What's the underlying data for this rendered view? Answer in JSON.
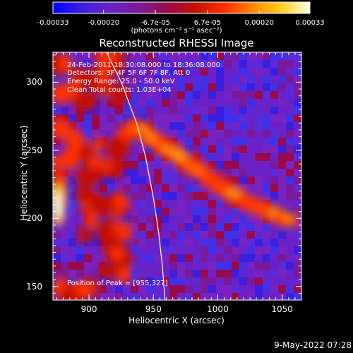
{
  "colorbar": {
    "tick_labels": [
      "-0.00033",
      "-0.00020",
      "-6.7e-05",
      "6.7e-05",
      "0.00020",
      "0.00033"
    ],
    "tick_values": [
      -0.00033,
      -0.0002,
      -6.7e-05,
      6.7e-05,
      0.0002,
      0.00033
    ],
    "range": [
      -0.00033,
      0.00033
    ],
    "units_label": "(photons cm⁻² s⁻¹ asec⁻²)",
    "colors": [
      "#0000ff",
      "#3a1fe0",
      "#6a22c8",
      "#7a1a9a",
      "#9a0a4a",
      "#c41000",
      "#ff3000",
      "#ff8800",
      "#ffd020",
      "#ffffe8"
    ]
  },
  "chart_data": {
    "type": "heatmap",
    "title": "Reconstructed RHESSI Image",
    "xlabel": "Heliocentric X (arcsec)",
    "ylabel": "Heliocentric Y (arcsec)",
    "xlim": [
      872,
      1065
    ],
    "ylim": [
      140,
      322
    ],
    "x_ticks": [
      900,
      950,
      1000,
      1050
    ],
    "y_ticks": [
      150,
      200,
      250,
      300
    ],
    "limb_arc": [
      [
        912,
        325
      ],
      [
        925,
        300
      ],
      [
        937,
        270
      ],
      [
        944,
        245
      ],
      [
        950,
        215
      ],
      [
        954,
        190
      ],
      [
        957,
        165
      ],
      [
        959,
        140
      ]
    ],
    "bright_ridge": [
      [
        935,
        268
      ],
      [
        955,
        255
      ],
      [
        978,
        240
      ],
      [
        1000,
        225
      ],
      [
        1020,
        213
      ],
      [
        1040,
        205
      ],
      [
        1058,
        197
      ]
    ],
    "bright_spot": [
      876,
      210
    ],
    "peak_position": [
      955,
      327
    ],
    "annotations": {
      "time_range": "24-Feb-2011 18:30:08.000 to 18:36:08.000",
      "detectors": "Detectors: 3F 4F 5F 6F 7F 8F, Att 0",
      "energy_range": "Energy Range: 25.0 - 50.0 keV",
      "method": "Clean     Total counts: 1.03E+04",
      "peak": "Position of Peak = [955,327]"
    }
  },
  "timestamp": "9-May-2022 07:28"
}
